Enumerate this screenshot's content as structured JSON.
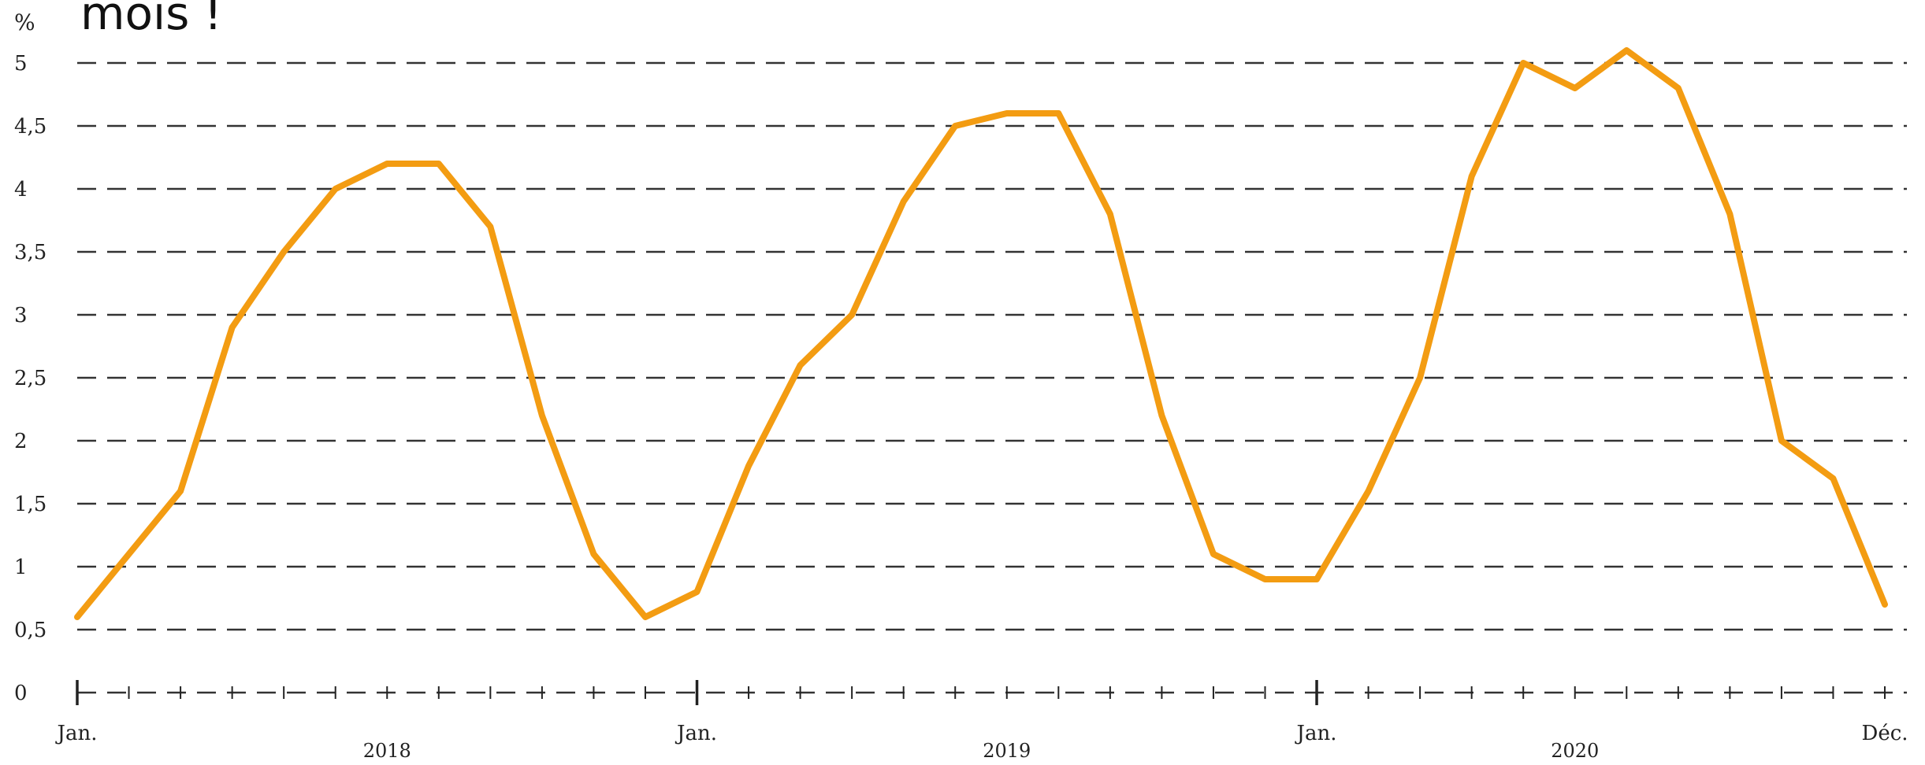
{
  "caption_fragment": "mois !",
  "chart_data": {
    "type": "line",
    "ylabel": "%",
    "ylim": [
      0,
      5
    ],
    "y_ticks": [
      "0",
      "0,5",
      "1",
      "1,5",
      "2",
      "2,5",
      "3",
      "3,5",
      "4",
      "4,5",
      "5"
    ],
    "y_tick_values": [
      0,
      0.5,
      1,
      1.5,
      2,
      2.5,
      3,
      3.5,
      4,
      4.5,
      5
    ],
    "grid": "horizontal dashed",
    "month_labels": [
      {
        "month_index": 0,
        "label": "Jan."
      },
      {
        "month_index": 12,
        "label": "Jan."
      },
      {
        "month_index": 24,
        "label": "Jan."
      },
      {
        "month_index": 35,
        "label": "Déc."
      }
    ],
    "year_labels": [
      {
        "month_index": 6,
        "label": "2018"
      },
      {
        "month_index": 18,
        "label": "2019"
      },
      {
        "month_index": 29,
        "label": "2020"
      }
    ],
    "x": [
      "2018-01",
      "2018-02",
      "2018-03",
      "2018-04",
      "2018-05",
      "2018-06",
      "2018-07",
      "2018-08",
      "2018-09",
      "2018-10",
      "2018-11",
      "2018-12",
      "2019-01",
      "2019-02",
      "2019-03",
      "2019-04",
      "2019-05",
      "2019-06",
      "2019-07",
      "2019-08",
      "2019-09",
      "2019-10",
      "2019-11",
      "2019-12",
      "2020-01",
      "2020-02",
      "2020-03",
      "2020-04",
      "2020-05",
      "2020-06",
      "2020-07",
      "2020-08",
      "2020-09",
      "2020-10",
      "2020-11",
      "2020-12"
    ],
    "series": [
      {
        "color": "#F39C12",
        "values": [
          0.6,
          1.1,
          1.6,
          2.9,
          3.5,
          4.0,
          4.2,
          4.2,
          3.7,
          2.2,
          1.1,
          0.6,
          0.8,
          1.8,
          2.6,
          3.0,
          3.9,
          4.5,
          4.6,
          4.6,
          3.8,
          2.2,
          1.1,
          0.9,
          0.9,
          1.6,
          2.5,
          4.1,
          5.0,
          4.8,
          5.1,
          4.8,
          3.8,
          2.0,
          1.7,
          0.7
        ]
      }
    ]
  }
}
